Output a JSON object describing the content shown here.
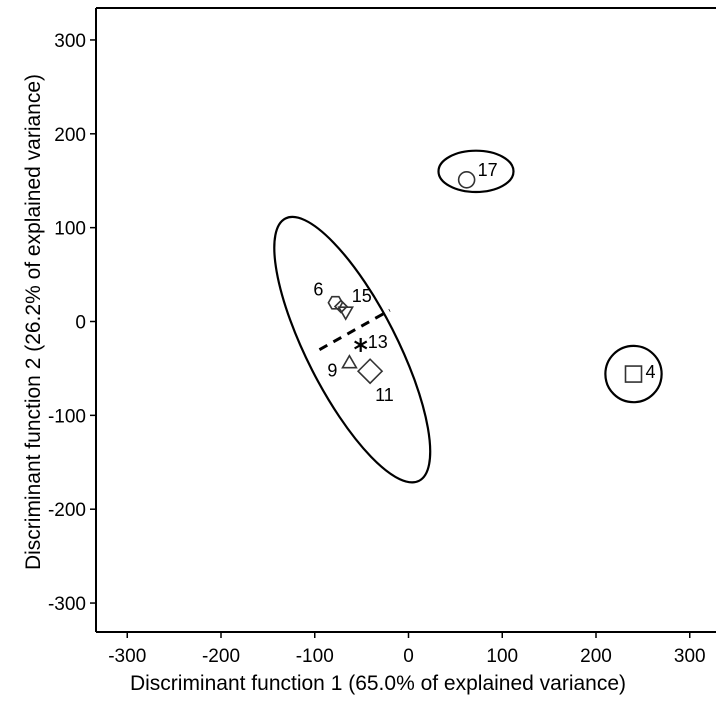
{
  "chart_data": {
    "type": "scatter",
    "xlabel": "Discriminant function 1 (65.0% of explained variance)",
    "ylabel": "Discriminant function 2 (26.2% of explained variance)",
    "xlim": [
      -335,
      330
    ],
    "ylim": [
      -333,
      333
    ],
    "xticks": [
      -300,
      -200,
      -100,
      0,
      100,
      200,
      300
    ],
    "yticks": [
      -300,
      -200,
      -100,
      0,
      100,
      200,
      300
    ],
    "grid": false,
    "points": [
      {
        "label": "17",
        "x": 62,
        "y": 151,
        "marker": "circle"
      },
      {
        "label": "4",
        "x": 240,
        "y": -56,
        "marker": "square"
      },
      {
        "label": "6",
        "x": -78,
        "y": 20,
        "marker": "hexagon"
      },
      {
        "label": "15",
        "x": -67,
        "y": 11,
        "marker": "triangle-down"
      },
      {
        "label": "",
        "x": -72,
        "y": 16,
        "marker": "diamond-small"
      },
      {
        "label": "13",
        "x": -51,
        "y": -25,
        "marker": "star"
      },
      {
        "label": "9",
        "x": -63,
        "y": -45,
        "marker": "triangle-up"
      },
      {
        "label": "11",
        "x": -41,
        "y": -53,
        "marker": "diamond"
      }
    ],
    "ellipses": [
      {
        "cx": 72,
        "cy": 160,
        "rx": 40,
        "ry": 22,
        "angle": 0
      },
      {
        "cx": 240,
        "cy": -56,
        "rx": 30,
        "ry": 30,
        "angle": 0
      },
      {
        "cx": -60,
        "cy": -30,
        "rx": 157,
        "ry": 48,
        "angle": 63
      }
    ],
    "dashed_line": {
      "x1": -95,
      "y1": -30,
      "x2": -20,
      "y2": 12
    }
  }
}
